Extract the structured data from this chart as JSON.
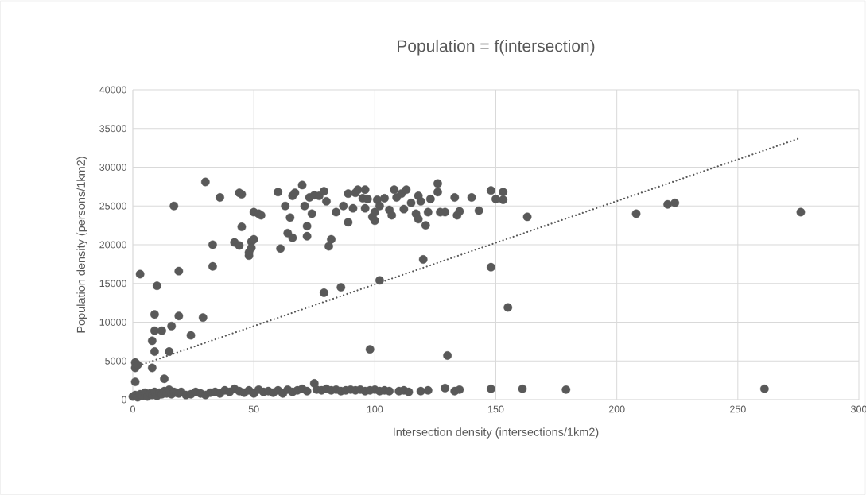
{
  "chart_data": {
    "type": "scatter",
    "title": "Population = f(intersection)",
    "xlabel": "Intersection density (intersections/1km2)",
    "ylabel": "Population density (persons/1km2)",
    "xlim": [
      0,
      300
    ],
    "ylim": [
      0,
      40000
    ],
    "xticks": [
      0,
      50,
      100,
      150,
      200,
      250,
      300
    ],
    "yticks": [
      0,
      5000,
      10000,
      15000,
      20000,
      25000,
      30000,
      35000,
      40000
    ],
    "grid": true,
    "series": [
      {
        "marker": "circle",
        "color": "#595959",
        "x": [
          3,
          10,
          17,
          19,
          30,
          36,
          33,
          33,
          44,
          45,
          42,
          44,
          45,
          48,
          48,
          49,
          50,
          50,
          49,
          52,
          53,
          60,
          61,
          63,
          64,
          66,
          65,
          66,
          67,
          70,
          71,
          72,
          72,
          74,
          73,
          75,
          77,
          79,
          80,
          81,
          82,
          84,
          87,
          89,
          89,
          91,
          92,
          93,
          95,
          96,
          96,
          97,
          99,
          100,
          100,
          101,
          102,
          104,
          106,
          107,
          108,
          109,
          111,
          112,
          113,
          115,
          117,
          118,
          118,
          119,
          121,
          122,
          123,
          126,
          126,
          127,
          129,
          133,
          134,
          135,
          140,
          143,
          148,
          150,
          153,
          153,
          163,
          208,
          221,
          224,
          276,
          9,
          8,
          9,
          9,
          12,
          13,
          15,
          16,
          19,
          24,
          29,
          79,
          86,
          98,
          102,
          120,
          130,
          148,
          155,
          1,
          1,
          1,
          2,
          8,
          0,
          1,
          2,
          3,
          4,
          5,
          6,
          7,
          8,
          9,
          10,
          11,
          12,
          13,
          14,
          15,
          16,
          17,
          18,
          19,
          20,
          22,
          24,
          26,
          28,
          30,
          32,
          34,
          36,
          38,
          40,
          42,
          44,
          46,
          48,
          50,
          52,
          54,
          56,
          58,
          60,
          62,
          64,
          66,
          68,
          70,
          72,
          75,
          76,
          78,
          80,
          82,
          84,
          86,
          88,
          90,
          92,
          94,
          96,
          98,
          100,
          102,
          104,
          106,
          110,
          112,
          114,
          119,
          122,
          129,
          133,
          135,
          148,
          161,
          179,
          261
        ],
        "values": [
          16200,
          14700,
          25000,
          16600,
          28100,
          26100,
          20000,
          17200,
          26700,
          26500,
          20300,
          19900,
          22300,
          18600,
          19000,
          20400,
          20700,
          24200,
          19600,
          24000,
          23800,
          26800,
          19500,
          25000,
          21500,
          20900,
          23500,
          26300,
          26700,
          27700,
          25000,
          22400,
          21100,
          24000,
          26100,
          26400,
          26300,
          26900,
          25600,
          19800,
          20700,
          24200,
          25000,
          26600,
          22900,
          24700,
          26700,
          27100,
          26000,
          27100,
          24700,
          25900,
          23600,
          24200,
          23100,
          25800,
          25000,
          26000,
          24500,
          23800,
          27100,
          26100,
          26600,
          24600,
          27100,
          25400,
          24000,
          23300,
          26300,
          25600,
          22500,
          24200,
          25900,
          27900,
          26800,
          24200,
          24200,
          26100,
          23800,
          24300,
          26100,
          24400,
          27000,
          25900,
          26800,
          25800,
          23600,
          24000,
          25200,
          25400,
          24200,
          11000,
          7600,
          8900,
          6200,
          8900,
          2700,
          6200,
          9500,
          10800,
          8300,
          10600,
          13800,
          14500,
          6500,
          15400,
          18100,
          5700,
          17100,
          11900,
          4800,
          4100,
          2300,
          4500,
          4100,
          400,
          600,
          300,
          700,
          500,
          900,
          400,
          800,
          600,
          1000,
          500,
          900,
          700,
          1100,
          800,
          1300,
          700,
          1000,
          900,
          800,
          1000,
          600,
          700,
          1000,
          800,
          600,
          900,
          1000,
          800,
          1200,
          1000,
          1400,
          1100,
          900,
          1200,
          800,
          1300,
          1000,
          1100,
          900,
          1200,
          800,
          1300,
          1000,
          1200,
          1400,
          1100,
          2100,
          1300,
          1200,
          1400,
          1200,
          1300,
          1100,
          1200,
          1300,
          1200,
          1300,
          1100,
          1200,
          1300,
          1100,
          1200,
          1100,
          1100,
          1200,
          1000,
          1100,
          1200,
          1500,
          1100,
          1300,
          1400,
          1400,
          1300,
          1400
        ]
      },
      {
        "type": "line",
        "marker": "none",
        "line_style": "dotted",
        "color": "#595959",
        "x": [
          2.6,
          276
        ],
        "values": [
          4400,
          33800
        ]
      }
    ]
  }
}
